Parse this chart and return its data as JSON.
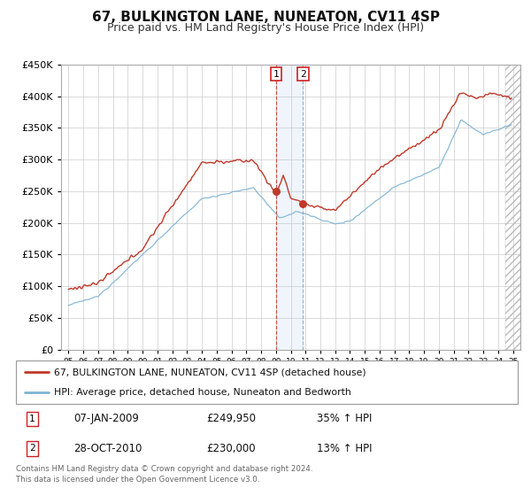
{
  "title": "67, BULKINGTON LANE, NUNEATON, CV11 4SP",
  "subtitle": "Price paid vs. HM Land Registry's House Price Index (HPI)",
  "ylabel_ticks": [
    "£0",
    "£50K",
    "£100K",
    "£150K",
    "£200K",
    "£250K",
    "£300K",
    "£350K",
    "£400K",
    "£450K"
  ],
  "ytick_values": [
    0,
    50000,
    100000,
    150000,
    200000,
    250000,
    300000,
    350000,
    400000,
    450000
  ],
  "xlim": [
    1994.5,
    2025.5
  ],
  "ylim": [
    0,
    450000
  ],
  "legend_line1": "67, BULKINGTON LANE, NUNEATON, CV11 4SP (detached house)",
  "legend_line2": "HPI: Average price, detached house, Nuneaton and Bedworth",
  "sale1_date": "07-JAN-2009",
  "sale1_price": "£249,950",
  "sale1_hpi": "35% ↑ HPI",
  "sale1_x": 2009.03,
  "sale1_y": 249950,
  "sale2_date": "28-OCT-2010",
  "sale2_price": "£230,000",
  "sale2_hpi": "13% ↑ HPI",
  "sale2_x": 2010.83,
  "sale2_y": 230000,
  "vline1_x": 2009.03,
  "vline2_x": 2010.83,
  "hatch_start_x": 2024.5,
  "bg_color": "#ffffff",
  "grid_color": "#cccccc",
  "hpi_line_color": "#7fb3d3",
  "price_line_color": "#c0392b",
  "footer_text": "Contains HM Land Registry data © Crown copyright and database right 2024.\nThis data is licensed under the Open Government Licence v3.0.",
  "title_fontsize": 11,
  "subtitle_fontsize": 9
}
